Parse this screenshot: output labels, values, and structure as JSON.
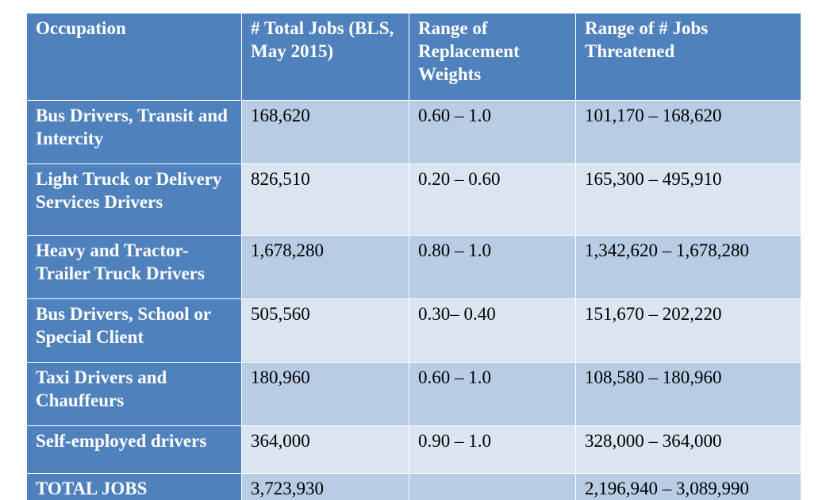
{
  "table": {
    "headers": {
      "occupation": "Occupation",
      "total_jobs": "# Total Jobs (BLS, May 2015)",
      "replacement_weights": "Range of Replacement Weights",
      "jobs_threatened": "Range of # Jobs Threatened"
    },
    "rows": [
      {
        "occupation": "Bus Drivers, Transit and Intercity",
        "total_jobs": "168,620",
        "replacement_weights": "0.60 – 1.0",
        "jobs_threatened": "101,170 – 168,620"
      },
      {
        "occupation": "Light Truck or Delivery Services Drivers",
        "total_jobs": "826,510",
        "replacement_weights": "0.20 – 0.60",
        "jobs_threatened": "165,300 – 495,910"
      },
      {
        "occupation": "Heavy and Tractor-Trailer Truck Drivers",
        "total_jobs": "1,678,280",
        "replacement_weights": "0.80 – 1.0",
        "jobs_threatened": "1,342,620 – 1,678,280"
      },
      {
        "occupation": "Bus Drivers, School or Special Client",
        "total_jobs": "505,560",
        "replacement_weights": "0.30– 0.40",
        "jobs_threatened": "151,670 – 202,220"
      },
      {
        "occupation": "Taxi Drivers and Chauffeurs",
        "total_jobs": "180,960",
        "replacement_weights": "0.60 – 1.0",
        "jobs_threatened": "108,580 – 180,960"
      },
      {
        "occupation": "Self-employed drivers",
        "total_jobs": "364,000",
        "replacement_weights": "0.90 – 1.0",
        "jobs_threatened": "328,000 – 364,000"
      },
      {
        "occupation": "TOTAL JOBS",
        "total_jobs": "3,723,930",
        "replacement_weights": "",
        "jobs_threatened": "2,196,940 – 3,089,990"
      }
    ]
  },
  "colors": {
    "header_fill": "#4f81bd",
    "band_dark": "#b8cce4",
    "band_light": "#dbe5f1",
    "header_text": "#ffffff",
    "body_text": "#000000"
  }
}
